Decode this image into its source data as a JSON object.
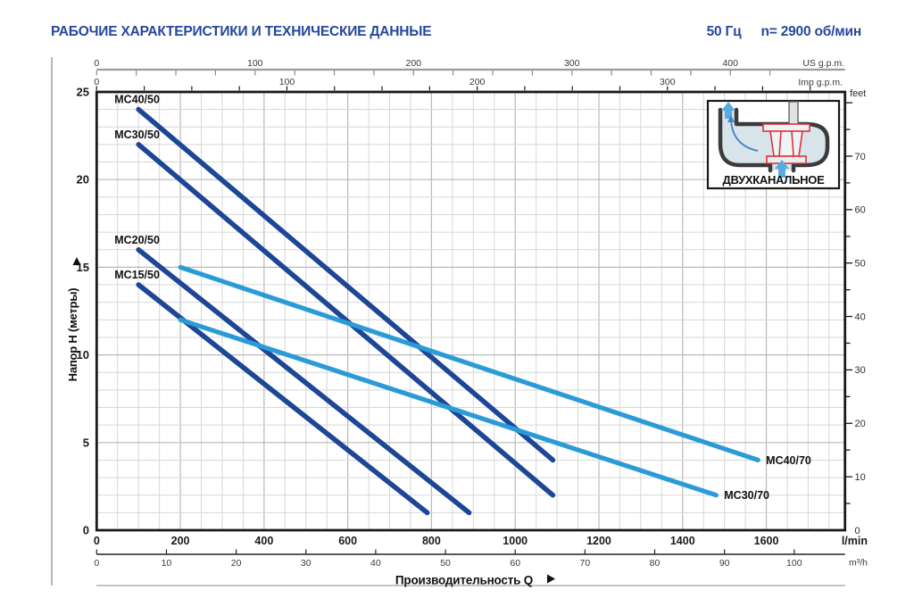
{
  "header": {
    "title": "РАБОЧИЕ ХАРАКТЕРИСТИКИ И ТЕХНИЧЕСКИЕ ДАННЫЕ",
    "frequency": "50 Гц",
    "speed": "n= 2900 об/мин"
  },
  "inset": {
    "caption": "ДВУХКАНАЛЬНОЕ"
  },
  "chart_data": {
    "type": "line",
    "title": "РАБОЧИЕ ХАРАКТЕРИСТИКИ И ТЕХНИЧЕСКИЕ ДАННЫЕ",
    "xlabel": "Производительность Q",
    "ylabel": "Напор H (метры)",
    "grid": true,
    "xlim_lmin": [
      0,
      1790
    ],
    "ylim_m": [
      0,
      25
    ],
    "x_axis_lmin": {
      "unit": "l/min",
      "tick_labels": [
        0,
        200,
        400,
        600,
        800,
        1000,
        1200,
        1400,
        1600
      ],
      "minor_step": 50
    },
    "x_axis_m3h": {
      "unit": "m³/h",
      "tick_labels": [
        0,
        10,
        20,
        30,
        40,
        50,
        60,
        70,
        80,
        90,
        100
      ],
      "lmin_per_unit": 16.6667
    },
    "x_axis_usgpm": {
      "unit": "US g.p.m.",
      "tick_labels": [
        0,
        100,
        200,
        300,
        400
      ],
      "minor_step": 25,
      "lmin_per_unit": 3.785
    },
    "x_axis_impgpm": {
      "unit": "Imp g.p.m.",
      "tick_labels": [
        0,
        100,
        200,
        300
      ],
      "minor_step": 25,
      "lmin_per_unit": 4.546
    },
    "y_axis_m": {
      "unit": "метры",
      "tick_labels": [
        0,
        5,
        10,
        15,
        20,
        25
      ],
      "minor_step": 1
    },
    "y_axis_feet": {
      "unit": "feet",
      "tick_labels": [
        0,
        10,
        20,
        30,
        40,
        50,
        60,
        70
      ],
      "minor_step": 5,
      "m_per_unit": 0.3048
    },
    "series": [
      {
        "name": "MC40/50",
        "color": "#1d4696",
        "points_lmin_m": [
          [
            100,
            24
          ],
          [
            1090,
            4
          ]
        ],
        "label_pos": "start"
      },
      {
        "name": "MC30/50",
        "color": "#1d4696",
        "points_lmin_m": [
          [
            100,
            22
          ],
          [
            1090,
            2
          ]
        ],
        "label_pos": "start"
      },
      {
        "name": "MC20/50",
        "color": "#1d4696",
        "points_lmin_m": [
          [
            100,
            16
          ],
          [
            890,
            1
          ]
        ],
        "label_pos": "start"
      },
      {
        "name": "MC15/50",
        "color": "#1d4696",
        "points_lmin_m": [
          [
            100,
            14
          ],
          [
            790,
            1
          ]
        ],
        "label_pos": "start"
      },
      {
        "name": "MC40/70",
        "color": "#2b9bd7",
        "points_lmin_m": [
          [
            200,
            15
          ],
          [
            1580,
            4
          ]
        ],
        "label_pos": "end"
      },
      {
        "name": "MC30/70",
        "color": "#2b9bd7",
        "points_lmin_m": [
          [
            200,
            12
          ],
          [
            1480,
            2
          ]
        ],
        "label_pos": "end"
      }
    ],
    "colors": {
      "dark_curve": "#1d4696",
      "light_curve": "#2b9bd7",
      "accent_blue": "#26489B",
      "grid_minor": "#d7d7d7",
      "grid_major": "#b9b9b9",
      "red_impeller": "#e03338",
      "flow_arrow": "#58abe0"
    }
  }
}
